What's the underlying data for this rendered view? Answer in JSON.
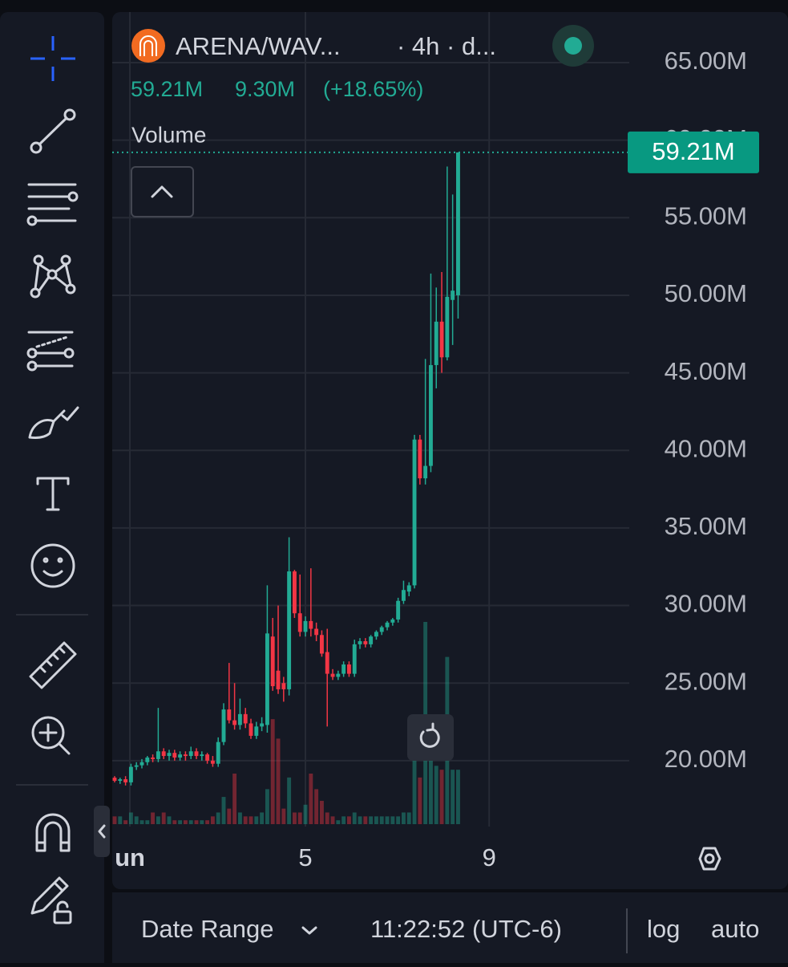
{
  "header": {
    "symbol": "ARENA/WAV...",
    "interval": "· 4h · d...",
    "last": "59.21M",
    "change": "9.30M",
    "change_pct": "(+18.65%)"
  },
  "indicator": {
    "label": "Volume"
  },
  "chart": {
    "type": "candlestick",
    "up_color": "#22ab94",
    "down_color": "#f23645",
    "candles": [
      [
        18.9,
        19.0,
        18.6,
        18.7,
        2
      ],
      [
        18.7,
        18.9,
        18.5,
        18.8,
        2
      ],
      [
        18.8,
        19.0,
        18.4,
        18.6,
        1
      ],
      [
        18.6,
        19.8,
        18.4,
        19.6,
        3
      ],
      [
        19.6,
        19.9,
        19.4,
        19.7,
        2
      ],
      [
        19.7,
        20.1,
        19.5,
        19.9,
        1
      ],
      [
        19.9,
        20.3,
        19.7,
        20.2,
        1
      ],
      [
        20.2,
        20.4,
        19.9,
        20.1,
        3
      ],
      [
        20.1,
        23.4,
        19.9,
        20.6,
        2
      ],
      [
        20.6,
        20.8,
        20.1,
        20.3,
        3
      ],
      [
        20.3,
        20.7,
        20.0,
        20.5,
        2
      ],
      [
        20.5,
        20.7,
        20.0,
        20.2,
        1
      ],
      [
        20.2,
        20.6,
        20.0,
        20.4,
        1
      ],
      [
        20.4,
        20.6,
        20.0,
        20.3,
        1
      ],
      [
        20.3,
        20.9,
        20.1,
        20.6,
        1
      ],
      [
        20.6,
        20.8,
        20.1,
        20.3,
        1
      ],
      [
        20.3,
        20.6,
        20.0,
        20.4,
        1
      ],
      [
        20.4,
        20.5,
        19.8,
        20.0,
        1
      ],
      [
        20.0,
        20.3,
        19.6,
        19.8,
        2
      ],
      [
        19.8,
        21.5,
        19.6,
        21.2,
        3
      ],
      [
        21.2,
        23.7,
        21.0,
        23.3,
        7
      ],
      [
        23.3,
        26.3,
        22.4,
        22.6,
        4
      ],
      [
        22.6,
        25.0,
        22.0,
        22.3,
        13
      ],
      [
        22.3,
        24.0,
        22.0,
        23.0,
        3
      ],
      [
        23.0,
        23.4,
        22.1,
        22.4,
        2
      ],
      [
        22.4,
        22.7,
        21.4,
        21.6,
        2
      ],
      [
        21.6,
        22.5,
        21.4,
        22.2,
        2
      ],
      [
        22.2,
        22.8,
        21.9,
        22.4,
        3
      ],
      [
        22.3,
        31.3,
        21.8,
        28.2,
        9
      ],
      [
        28.0,
        29.2,
        24.5,
        24.8,
        27
      ],
      [
        25.8,
        30.0,
        24.3,
        24.6,
        22
      ],
      [
        25.0,
        25.4,
        23.8,
        24.6,
        4
      ],
      [
        24.6,
        34.4,
        24.2,
        32.2,
        12
      ],
      [
        32.2,
        32.3,
        29.2,
        29.5,
        3
      ],
      [
        29.5,
        32.0,
        28.0,
        28.3,
        3
      ],
      [
        28.3,
        29.3,
        28.0,
        29.0,
        5
      ],
      [
        29.0,
        32.4,
        28.0,
        28.5,
        13
      ],
      [
        28.5,
        28.9,
        27.7,
        28.1,
        9
      ],
      [
        28.1,
        28.4,
        26.7,
        26.9,
        6
      ],
      [
        27.0,
        28.5,
        22.2,
        25.6,
        3
      ],
      [
        25.6,
        25.9,
        25.2,
        25.4,
        2
      ],
      [
        25.4,
        25.8,
        25.2,
        25.6,
        1
      ],
      [
        25.6,
        26.4,
        25.4,
        26.2,
        2
      ],
      [
        26.2,
        26.4,
        25.4,
        25.6,
        2
      ],
      [
        25.6,
        27.8,
        25.4,
        27.5,
        3
      ],
      [
        27.5,
        27.9,
        27.2,
        27.7,
        2
      ],
      [
        27.7,
        27.9,
        27.3,
        27.5,
        2
      ],
      [
        27.5,
        28.1,
        27.3,
        28.0,
        2
      ],
      [
        28.0,
        28.4,
        27.8,
        28.3,
        2
      ],
      [
        28.3,
        28.7,
        28.1,
        28.6,
        2
      ],
      [
        28.6,
        29.0,
        28.4,
        28.9,
        2
      ],
      [
        28.9,
        29.2,
        28.7,
        29.1,
        2
      ],
      [
        29.1,
        30.5,
        28.9,
        30.3,
        2
      ],
      [
        30.3,
        31.6,
        30.1,
        31.0,
        3
      ],
      [
        30.9,
        31.5,
        30.6,
        31.3,
        3
      ],
      [
        31.3,
        41.0,
        31.1,
        40.7,
        22
      ],
      [
        40.7,
        41.0,
        37.8,
        38.2,
        12
      ],
      [
        38.2,
        45.9,
        37.8,
        39.0,
        52
      ],
      [
        39.0,
        51.4,
        38.6,
        45.5,
        20
      ],
      [
        45.5,
        50.5,
        44.0,
        48.3,
        15
      ],
      [
        48.3,
        51.5,
        45.0,
        46.0,
        14
      ],
      [
        46.0,
        58.3,
        45.8,
        49.9,
        43
      ],
      [
        49.7,
        56.5,
        46.8,
        50.3,
        14
      ],
      [
        50.0,
        59.21,
        48.5,
        59.21,
        14
      ]
    ],
    "ylim": [
      15.75,
      68.26
    ],
    "yticks": [
      {
        "value": 65,
        "label": "65.00M"
      },
      {
        "value": 60,
        "label": "60.00M"
      },
      {
        "value": 55,
        "label": "55.00M"
      },
      {
        "value": 50,
        "label": "50.00M"
      },
      {
        "value": 45,
        "label": "45.00M"
      },
      {
        "value": 40,
        "label": "40.00M"
      },
      {
        "value": 35,
        "label": "35.00M"
      },
      {
        "value": 30,
        "label": "30.00M"
      },
      {
        "value": 25,
        "label": "25.00M"
      },
      {
        "value": 20,
        "label": "20.00M"
      }
    ],
    "last_price": {
      "value": 59.21,
      "label": "59.21M"
    },
    "xlim": [
      -0.44,
      94.4
    ],
    "xticks": [
      {
        "value": 2.8,
        "label": "un"
      },
      {
        "value": 35,
        "label": "5"
      },
      {
        "value": 68.7,
        "label": "9"
      }
    ],
    "grid": true
  },
  "footer": {
    "date_range": "Date Range",
    "time": "11:22:52 (UTC-6)",
    "log": "log",
    "auto": "auto"
  }
}
